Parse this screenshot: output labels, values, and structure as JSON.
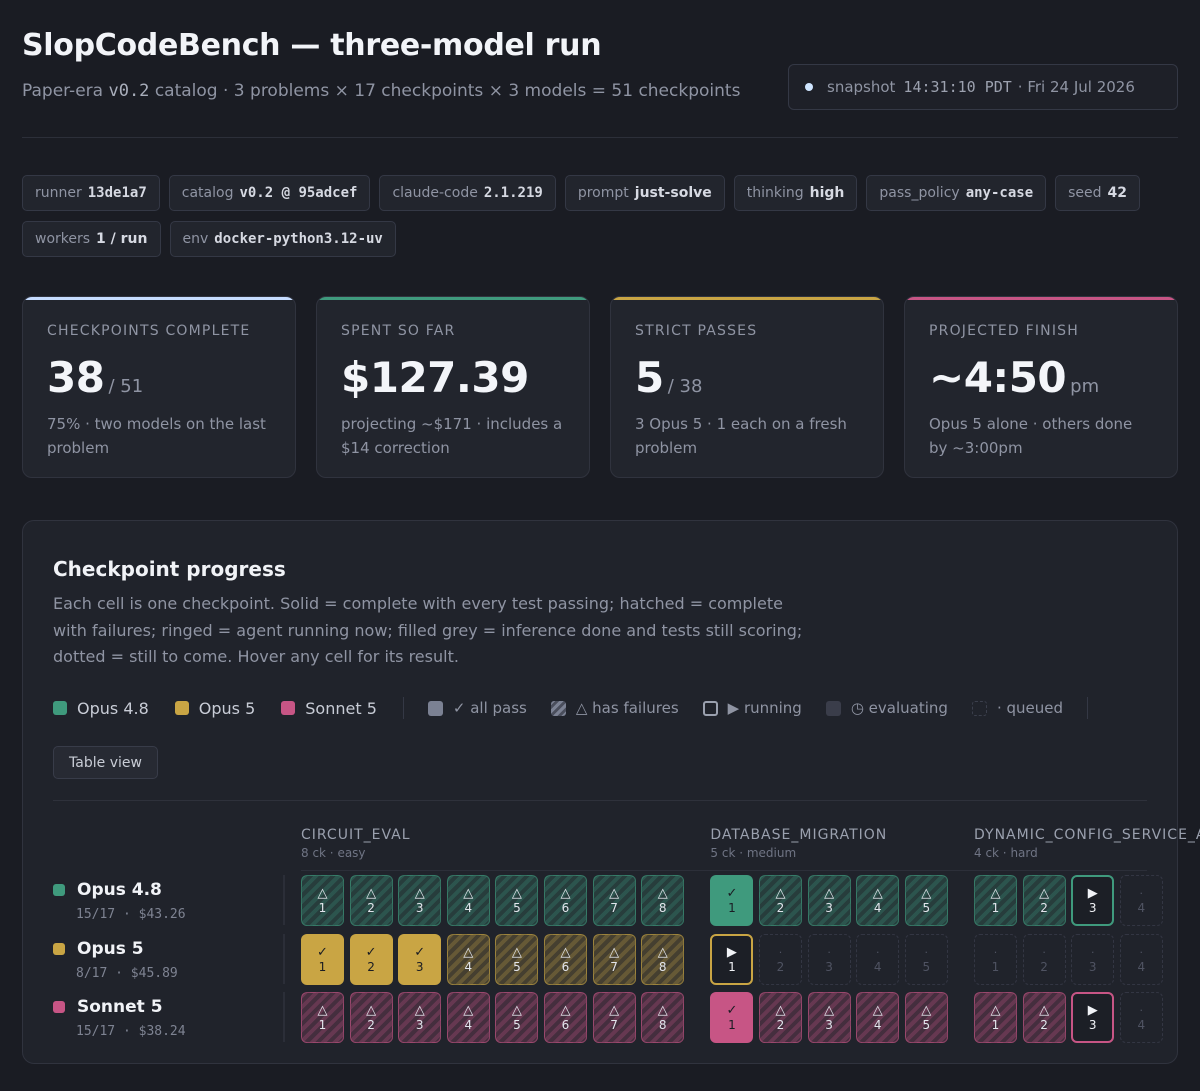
{
  "header": {
    "title": "SlopCodeBench — three-model run",
    "subtitle_prefix": "Paper-era",
    "subtitle_version": "v0.2",
    "subtitle_rest": "catalog · 3 problems × 17 checkpoints × 3 models = 51 checkpoints",
    "snapshot_label": "snapshot",
    "snapshot_time": "14:31:10 PDT",
    "snapshot_date": "· Fri 24 Jul 2026"
  },
  "chips": [
    {
      "key": "runner",
      "value": "13de1a7",
      "mono": true
    },
    {
      "key": "catalog",
      "value": "v0.2 @ 95adcef",
      "mono": true
    },
    {
      "key": "claude-code",
      "value": "2.1.219",
      "mono": true
    },
    {
      "key": "prompt",
      "value": "just-solve",
      "mono": false
    },
    {
      "key": "thinking",
      "value": "high",
      "mono": false
    },
    {
      "key": "pass_policy",
      "value": "any-case",
      "mono": true
    },
    {
      "key": "seed",
      "value": "42",
      "mono": false
    },
    {
      "key": "workers",
      "value": "1 / run",
      "mono": false
    },
    {
      "key": "env",
      "value": "docker-python3.12-uv",
      "mono": true
    }
  ],
  "stats": [
    {
      "label": "CHECKPOINTS COMPLETE",
      "value": "38",
      "unit": "/ 51",
      "note": "75% · two models on the last problem",
      "accent": "#c6dcff"
    },
    {
      "label": "SPENT SO FAR",
      "value": "$127.39",
      "unit": "",
      "note": "projecting ~$171 · includes a $14 correction",
      "accent": "#3f9a7d"
    },
    {
      "label": "STRICT PASSES",
      "value": "5",
      "unit": "/ 38",
      "note": "3 Opus 5 · 1 each on a fresh problem",
      "accent": "#c9a544"
    },
    {
      "label": "PROJECTED FINISH",
      "value": "~4:50",
      "unit": "pm",
      "note": "Opus 5 alone · others done by ~3:00pm",
      "accent": "#c75585"
    }
  ],
  "panel": {
    "title": "Checkpoint progress",
    "description": "Each cell is one checkpoint. Solid = complete with every test passing; hatched = complete with failures; ringed = agent running now; filled grey = inference done and tests still scoring; dotted = still to come. Hover any cell for its result.",
    "legend_models": [
      {
        "name": "Opus 4.8",
        "color": "#3f9a7d"
      },
      {
        "name": "Opus 5",
        "color": "#c9a544"
      },
      {
        "name": "Sonnet 5",
        "color": "#c75585"
      }
    ],
    "legend_states": [
      {
        "id": "pass",
        "label": "✓ all pass"
      },
      {
        "id": "fail",
        "label": "△ has failures"
      },
      {
        "id": "running",
        "label": "▶ running"
      },
      {
        "id": "evaluating",
        "label": "◷ evaluating"
      },
      {
        "id": "queued",
        "label": "· queued"
      }
    ],
    "table_view_label": "Table view"
  },
  "problems": [
    {
      "name": "CIRCUIT_EVAL",
      "meta": "8 ck · easy",
      "checkpoints": 8
    },
    {
      "name": "DATABASE_MIGRATION",
      "meta": "5 ck · medium",
      "checkpoints": 5
    },
    {
      "name": "DYNAMIC_CONFIG_SERVICE_API",
      "meta": "4 ck · hard",
      "checkpoints": 4
    }
  ],
  "models": [
    {
      "name": "Opus 4.8",
      "color": "#3f9a7d",
      "summary": "15/17 · $43.26",
      "cells": [
        [
          "fail",
          "fail",
          "fail",
          "fail",
          "fail",
          "fail",
          "fail",
          "fail"
        ],
        [
          "pass",
          "fail",
          "fail",
          "fail",
          "fail"
        ],
        [
          "fail",
          "fail",
          "running",
          "queued"
        ]
      ]
    },
    {
      "name": "Opus 5",
      "color": "#c9a544",
      "summary": "8/17 · $45.89",
      "cells": [
        [
          "pass",
          "pass",
          "pass",
          "fail",
          "fail",
          "fail",
          "fail",
          "fail"
        ],
        [
          "running",
          "queued",
          "queued",
          "queued",
          "queued"
        ],
        [
          "queued",
          "queued",
          "queued",
          "queued"
        ]
      ]
    },
    {
      "name": "Sonnet 5",
      "color": "#c75585",
      "summary": "15/17 · $38.24",
      "cells": [
        [
          "fail",
          "fail",
          "fail",
          "fail",
          "fail",
          "fail",
          "fail",
          "fail"
        ],
        [
          "pass",
          "fail",
          "fail",
          "fail",
          "fail"
        ],
        [
          "fail",
          "fail",
          "running",
          "queued"
        ]
      ]
    }
  ]
}
